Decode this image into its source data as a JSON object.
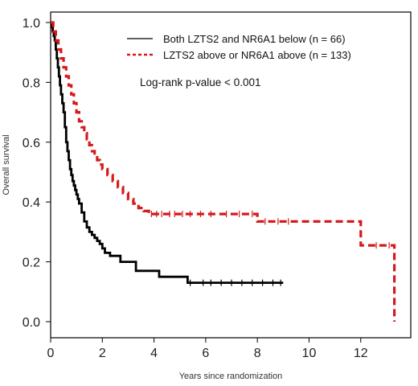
{
  "chart_data": {
    "type": "line",
    "title": "",
    "xlabel": "Years since randomization",
    "ylabel": "Overall survival",
    "xlim": [
      0,
      13.5
    ],
    "ylim": [
      0,
      1.0
    ],
    "xticks": [
      "0",
      "2",
      "4",
      "6",
      "8",
      "10",
      "12"
    ],
    "xtick_values": [
      0,
      2,
      4,
      6,
      8,
      10,
      12
    ],
    "yticks": [
      "0.0",
      "0.2",
      "0.4",
      "0.6",
      "0.8",
      "1.0"
    ],
    "ytick_values": [
      0,
      0.2,
      0.4,
      0.6,
      0.8,
      1.0
    ],
    "grid": false,
    "legend_position": "top-right",
    "annotation": "Log-rank p-value < 0.001",
    "series": [
      {
        "name": "Both LZTS2 and NR6A1 below (n = 66)",
        "color": "#000000",
        "line_style": "solid",
        "x": [
          0,
          0.04,
          0.08,
          0.12,
          0.16,
          0.2,
          0.24,
          0.28,
          0.32,
          0.36,
          0.4,
          0.45,
          0.5,
          0.55,
          0.6,
          0.65,
          0.7,
          0.75,
          0.8,
          0.85,
          0.9,
          0.95,
          1.0,
          1.05,
          1.1,
          1.2,
          1.3,
          1.4,
          1.5,
          1.6,
          1.7,
          1.8,
          1.9,
          2.0,
          2.1,
          2.3,
          2.7,
          3.3,
          4.2,
          5.3,
          9.0
        ],
        "y": [
          1.0,
          0.985,
          0.97,
          0.955,
          0.94,
          0.91,
          0.88,
          0.85,
          0.82,
          0.79,
          0.76,
          0.73,
          0.7,
          0.65,
          0.6,
          0.57,
          0.54,
          0.51,
          0.49,
          0.47,
          0.455,
          0.44,
          0.425,
          0.41,
          0.395,
          0.365,
          0.335,
          0.315,
          0.3,
          0.29,
          0.28,
          0.27,
          0.26,
          0.245,
          0.23,
          0.22,
          0.2,
          0.17,
          0.15,
          0.13,
          0.13
        ],
        "censored_x": [
          5.4,
          5.9,
          6.2,
          6.6,
          7.0,
          7.4,
          7.8,
          8.2,
          8.6,
          8.9
        ],
        "censored_y": [
          0.13,
          0.13,
          0.13,
          0.13,
          0.13,
          0.13,
          0.13,
          0.13,
          0.13,
          0.13
        ]
      },
      {
        "name": "LZTS2 above or NR6A1 above (n = 133)",
        "color": "#d7191c",
        "line_style": "dashed",
        "x": [
          0,
          0.1,
          0.2,
          0.3,
          0.4,
          0.5,
          0.6,
          0.7,
          0.8,
          0.9,
          1.0,
          1.1,
          1.2,
          1.3,
          1.4,
          1.5,
          1.6,
          1.7,
          1.8,
          1.9,
          2.0,
          2.2,
          2.4,
          2.6,
          2.8,
          3.0,
          3.2,
          3.4,
          3.6,
          3.8,
          8.0,
          12.0,
          13.3
        ],
        "y": [
          1.0,
          0.97,
          0.94,
          0.91,
          0.88,
          0.85,
          0.82,
          0.79,
          0.76,
          0.73,
          0.7,
          0.67,
          0.65,
          0.63,
          0.61,
          0.59,
          0.57,
          0.555,
          0.54,
          0.525,
          0.51,
          0.49,
          0.47,
          0.45,
          0.43,
          0.41,
          0.395,
          0.38,
          0.37,
          0.36,
          0.335,
          0.255,
          0.0
        ],
        "censored_x": [
          3.9,
          4.1,
          4.3,
          4.6,
          4.8,
          5.1,
          5.4,
          5.8,
          6.2,
          6.8,
          7.3,
          7.8,
          8.3,
          8.8,
          9.2,
          12.6,
          13.1
        ],
        "censored_y": [
          0.36,
          0.36,
          0.36,
          0.36,
          0.36,
          0.36,
          0.36,
          0.36,
          0.36,
          0.36,
          0.36,
          0.36,
          0.335,
          0.335,
          0.335,
          0.255,
          0.255
        ]
      }
    ]
  }
}
